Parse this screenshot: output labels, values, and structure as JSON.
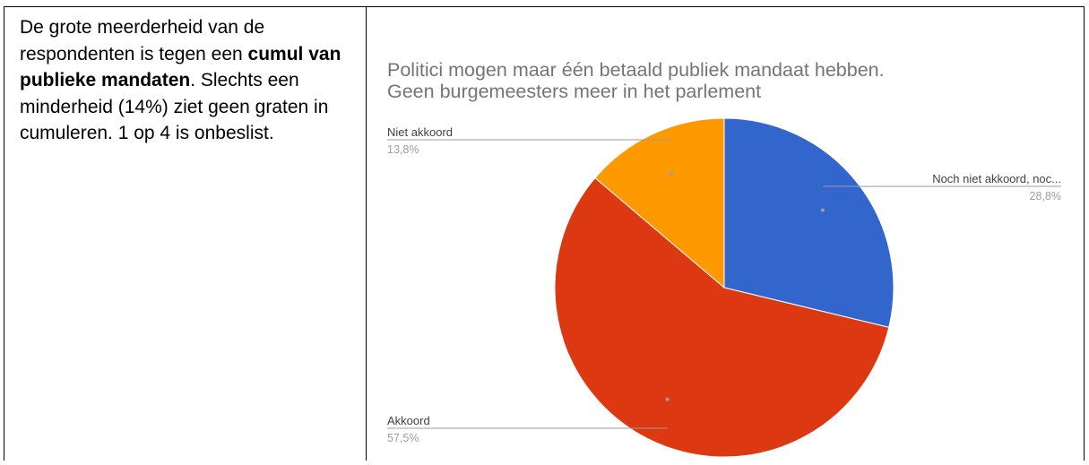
{
  "description": {
    "part1": "De grote meerderheid van de respondenten is tegen een ",
    "bold": "cumul van publieke mandaten",
    "part2": ". Slechts een minderheid (14%) ziet geen graten in cumuleren. 1 op 4 is onbeslist."
  },
  "chart_data": {
    "type": "pie",
    "title": "Politici mogen maar één betaald publiek mandaat hebben.",
    "subtitle": "Geen burgemeesters meer in het parlement",
    "slices": [
      {
        "label": "Noch niet akkoord, noc...",
        "value": 28.8,
        "display": "28,8%",
        "color": "#3366cc"
      },
      {
        "label": "Akkoord",
        "value": 57.5,
        "display": "57,5%",
        "color": "#dc3912"
      },
      {
        "label": "Niet akkoord",
        "value": 13.8,
        "display": "13,8%",
        "color": "#ff9900"
      }
    ]
  }
}
